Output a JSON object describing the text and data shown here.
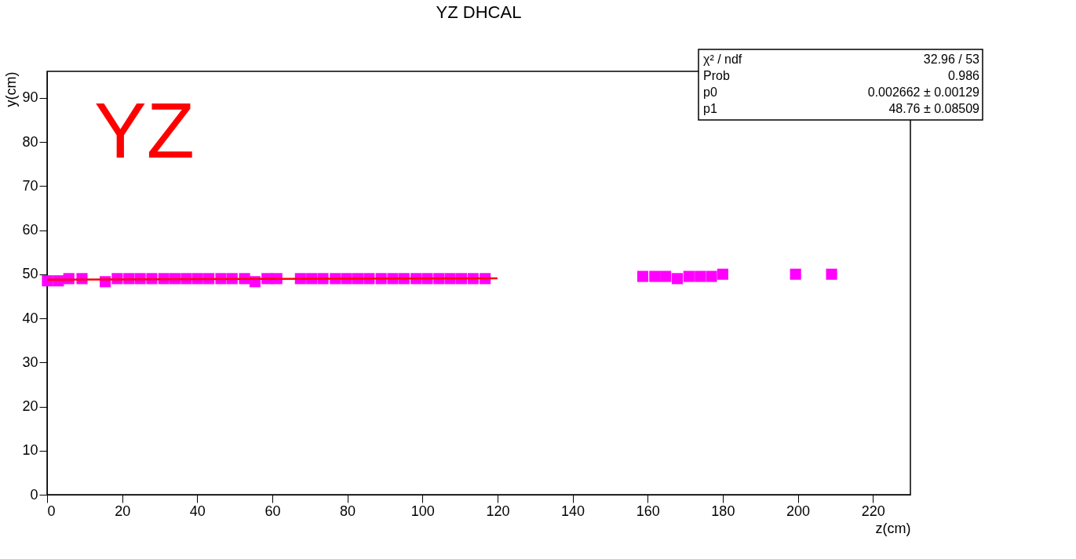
{
  "chart_data": {
    "type": "scatter",
    "title": "YZ DHCAL",
    "xlabel": "z(cm)",
    "ylabel": "y(cm)",
    "xlim": [
      0,
      230
    ],
    "ylim": [
      0,
      96
    ],
    "xticks": [
      0,
      20,
      40,
      60,
      80,
      100,
      120,
      140,
      160,
      180,
      200,
      220
    ],
    "yticks": [
      0,
      10,
      20,
      30,
      40,
      50,
      60,
      70,
      80,
      90
    ],
    "grid": false,
    "marker": "square",
    "series": [
      {
        "color": "#ff00ff",
        "x": [
          0.1,
          3.0,
          5.8,
          9.3,
          15.5,
          18.7,
          21.8,
          24.8,
          27.9,
          31.1,
          34.1,
          37.1,
          40.1,
          43.1,
          46.3,
          49.3,
          52.6,
          55.4,
          58.6,
          61.2,
          67.5,
          70.5,
          73.5,
          76.8,
          79.8,
          82.8,
          85.8,
          89.0,
          92.1,
          95.1,
          98.3,
          101.3,
          104.4,
          107.4,
          110.4,
          113.5,
          116.7,
          158.7,
          161.9,
          164.8,
          167.9,
          171.0,
          174.0,
          177.0,
          180.0,
          199.4,
          209.0
        ],
        "values": [
          48.5,
          48.5,
          49.0,
          49.0,
          48.3,
          49.0,
          49.0,
          49.0,
          49.0,
          49.0,
          49.0,
          49.0,
          49.0,
          49.0,
          49.0,
          49.0,
          49.0,
          48.3,
          49.0,
          49.0,
          49.0,
          49.0,
          49.0,
          49.0,
          49.0,
          49.0,
          49.0,
          49.0,
          49.0,
          49.0,
          49.0,
          49.0,
          49.0,
          49.0,
          49.0,
          49.0,
          49.0,
          49.5,
          49.5,
          49.5,
          49.0,
          49.5,
          49.5,
          49.5,
          50.0,
          50.0,
          50.0
        ]
      },
      {
        "type": "line",
        "color": "#ff0000",
        "marker": "none",
        "x": [
          0,
          120
        ],
        "values": [
          48.76,
          49.08
        ]
      }
    ],
    "annotations": [
      "YZ",
      "χ² / ndf",
      "32.96 / 53",
      "Prob",
      "0.986",
      "p0",
      "0.002662 ± 0.00129",
      "p1",
      "48.76 ± 0.08509"
    ]
  }
}
